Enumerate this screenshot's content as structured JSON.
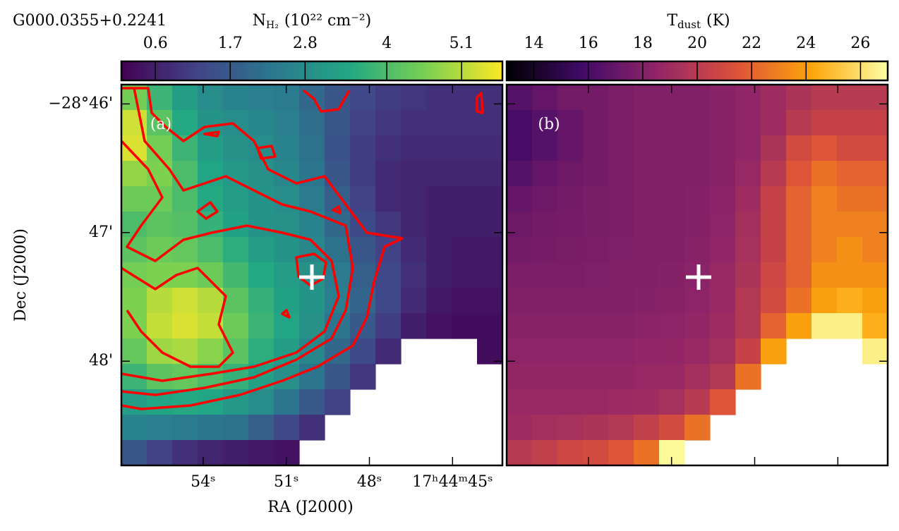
{
  "chart_data": [
    {
      "type": "heatmap",
      "title": "G000.0355+0.2241",
      "panel_label": "(a)",
      "colormap": "viridis",
      "xlabel": "RA (J2000)",
      "ylabel": "Dec (J2000)",
      "xlim": [
        56.95,
        43.2
      ],
      "ylim": [
        45.85,
        48.81
      ],
      "xticks": [
        {
          "value": 54,
          "label": "54ˢ"
        },
        {
          "value": 51,
          "label": "51ˢ"
        },
        {
          "value": 48,
          "label": "48ˢ"
        },
        {
          "value": 45,
          "label": "17ʰ44ᵐ45ˢ"
        }
      ],
      "yticks": [
        {
          "value": 46,
          "label": "−28°46'"
        },
        {
          "value": 47,
          "label": "47'"
        },
        {
          "value": 48,
          "label": "48'"
        }
      ],
      "colorbar": {
        "symbol": "N",
        "subscript": "H₂",
        "units": "(10²² cm⁻²)",
        "lim": [
          0.1,
          5.7
        ],
        "ticks": [
          0.6,
          1.7,
          2.8,
          4.0,
          5.1
        ]
      },
      "values": [
        [
          4.5,
          3.8,
          3.2,
          2.8,
          2.6,
          2.5,
          2.4,
          2.0,
          1.6,
          1.3,
          1.1,
          1.0,
          0.9,
          0.9,
          0.9
        ],
        [
          5.3,
          4.2,
          3.5,
          3.0,
          2.8,
          2.7,
          2.5,
          2.1,
          1.6,
          1.2,
          1.0,
          0.9,
          0.9,
          0.9,
          0.9
        ],
        [
          5.4,
          4.5,
          3.8,
          3.2,
          2.9,
          2.8,
          2.6,
          2.2,
          1.5,
          1.1,
          0.9,
          0.8,
          0.8,
          0.8,
          0.8
        ],
        [
          4.8,
          4.6,
          4.0,
          3.4,
          3.1,
          2.9,
          2.7,
          2.3,
          1.6,
          1.1,
          0.8,
          0.7,
          0.7,
          0.7,
          0.7
        ],
        [
          4.4,
          4.4,
          4.0,
          3.5,
          3.2,
          3.0,
          2.8,
          2.4,
          1.8,
          1.2,
          0.8,
          0.7,
          0.6,
          0.6,
          0.6
        ],
        [
          4.0,
          4.2,
          4.1,
          3.7,
          3.3,
          3.0,
          2.9,
          2.6,
          2.0,
          1.4,
          1.0,
          0.7,
          0.6,
          0.6,
          0.6
        ],
        [
          4.2,
          4.4,
          4.3,
          4.0,
          3.6,
          3.2,
          3.0,
          2.7,
          2.2,
          1.6,
          1.2,
          0.8,
          0.6,
          0.5,
          0.5
        ],
        [
          4.5,
          4.6,
          4.6,
          4.4,
          3.9,
          3.5,
          3.2,
          2.9,
          2.4,
          1.8,
          1.3,
          0.9,
          0.6,
          0.5,
          0.5
        ],
        [
          4.6,
          5.1,
          5.3,
          5.1,
          4.2,
          3.7,
          3.3,
          3.0,
          2.5,
          1.9,
          1.3,
          0.8,
          0.5,
          0.4,
          0.4
        ],
        [
          4.6,
          5.2,
          5.4,
          5.2,
          4.4,
          3.8,
          3.4,
          2.9,
          2.3,
          1.7,
          1.1,
          0.6,
          0.4,
          0.3,
          0.3
        ],
        [
          4.3,
          4.9,
          5.0,
          4.7,
          4.2,
          3.6,
          3.2,
          2.7,
          2.0,
          1.4,
          0.8,
          null,
          null,
          null,
          0.3
        ],
        [
          3.8,
          4.2,
          4.3,
          4.0,
          3.7,
          3.3,
          2.9,
          2.3,
          1.6,
          1.0,
          null,
          null,
          null,
          null,
          null
        ],
        [
          3.2,
          3.4,
          3.5,
          3.4,
          3.1,
          2.8,
          2.3,
          1.7,
          1.2,
          null,
          null,
          null,
          null,
          null,
          null
        ],
        [
          2.6,
          2.5,
          2.4,
          2.3,
          2.2,
          1.8,
          1.3,
          0.9,
          null,
          null,
          null,
          null,
          null,
          null,
          null
        ],
        [
          1.6,
          1.2,
          0.9,
          0.7,
          0.6,
          0.5,
          0.4,
          null,
          null,
          null,
          null,
          null,
          null,
          null,
          null
        ]
      ]
    },
    {
      "type": "heatmap",
      "panel_label": "(b)",
      "colormap": "inferno",
      "colorbar": {
        "symbol": "T",
        "subscript": "dust",
        "units": "(K)",
        "lim": [
          13,
          27
        ],
        "ticks": [
          14,
          16,
          18,
          20,
          22,
          24,
          26
        ]
      },
      "values": [
        [
          16.5,
          17,
          17.5,
          17.5,
          17.8,
          18,
          18,
          18,
          18.2,
          18.5,
          19,
          19.5,
          20,
          20,
          20
        ],
        [
          16,
          16.5,
          17,
          17.5,
          17.8,
          18,
          18,
          18,
          18.2,
          18.5,
          19,
          20,
          20.5,
          20.5,
          20.5
        ],
        [
          16,
          16.5,
          17,
          17.5,
          17.8,
          18,
          18,
          18,
          18.2,
          18.5,
          19.5,
          21,
          21.5,
          21,
          21
        ],
        [
          16.5,
          17,
          17.3,
          17.5,
          17.8,
          18,
          18,
          18,
          18.2,
          18.7,
          20,
          21.5,
          22.5,
          22,
          22
        ],
        [
          17,
          17.3,
          17.5,
          17.7,
          17.8,
          18,
          18,
          18.1,
          18.3,
          19,
          20.5,
          22,
          23,
          22.5,
          22.5
        ],
        [
          17.3,
          17.5,
          17.6,
          17.7,
          17.8,
          18,
          18,
          18.1,
          18.4,
          19.2,
          20.5,
          22,
          23,
          23,
          23
        ],
        [
          17.5,
          17.6,
          17.7,
          17.8,
          17.9,
          18,
          18,
          18.2,
          18.5,
          19.3,
          20.5,
          22,
          23,
          23.5,
          23
        ],
        [
          17.8,
          17.8,
          17.8,
          17.9,
          18,
          18,
          18.1,
          18.3,
          18.7,
          19.5,
          20.8,
          22,
          23.5,
          23.5,
          23.5
        ],
        [
          18,
          18,
          18,
          18,
          18,
          18.1,
          18.2,
          18.4,
          18.8,
          19.8,
          21,
          22.5,
          24,
          24.5,
          24
        ],
        [
          18.2,
          18.2,
          18.2,
          18.2,
          18.2,
          18.3,
          18.4,
          18.6,
          19,
          19.8,
          22,
          24,
          26.5,
          26.5,
          24.5
        ],
        [
          18.4,
          18.4,
          18.4,
          18.4,
          18.4,
          18.5,
          18.6,
          18.8,
          19.2,
          20.5,
          24,
          null,
          null,
          null,
          26.5
        ],
        [
          18.6,
          18.6,
          18.6,
          18.6,
          18.6,
          18.7,
          18.8,
          19.2,
          19.8,
          22.5,
          null,
          null,
          null,
          null,
          null
        ],
        [
          18.8,
          18.8,
          18.8,
          18.8,
          18.9,
          19,
          19.3,
          20,
          21.5,
          null,
          null,
          null,
          null,
          null,
          null
        ],
        [
          19,
          19.2,
          19.3,
          19.5,
          19.8,
          20.3,
          21,
          22.5,
          null,
          null,
          null,
          null,
          null,
          null,
          null
        ],
        [
          20,
          20.3,
          20.8,
          21,
          21.5,
          22.5,
          26.8,
          null,
          null,
          null,
          null,
          null,
          null,
          null,
          null
        ]
      ]
    }
  ]
}
